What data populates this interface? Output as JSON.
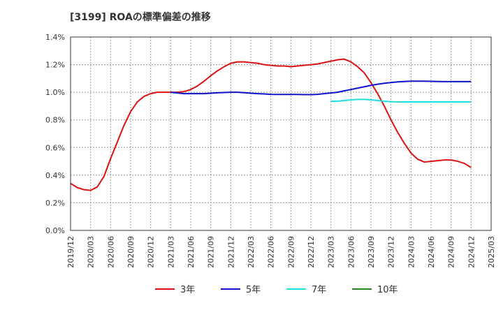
{
  "chart_data": {
    "type": "line",
    "title": "[3199]  ROAの標準偏差の推移",
    "xlabel": "",
    "ylabel": "",
    "ylim": [
      0,
      1.4
    ],
    "yticks": [
      0,
      0.2,
      0.4,
      0.6,
      0.8,
      1.0,
      1.2,
      1.4
    ],
    "ytick_labels": [
      "0.0%",
      "0.2%",
      "0.4%",
      "0.6%",
      "0.8%",
      "1.0%",
      "1.2%",
      "1.4%"
    ],
    "x_tick_labels": [
      "2019/12",
      "2020/03",
      "2020/06",
      "2020/09",
      "2020/12",
      "2021/03",
      "2021/06",
      "2021/09",
      "2021/12",
      "2022/03",
      "2022/06",
      "2022/09",
      "2022/12",
      "2023/03",
      "2023/06",
      "2023/09",
      "2023/12",
      "2024/03",
      "2024/06",
      "2024/09",
      "2024/12",
      "2025/03"
    ],
    "grid": true,
    "legend_position": "bottom",
    "series": [
      {
        "name": "3年",
        "color": "#dd1111",
        "points": [
          [
            "2019/12",
            0.34
          ],
          [
            "2020/01",
            0.31
          ],
          [
            "2020/02",
            0.295
          ],
          [
            "2020/03",
            0.29
          ],
          [
            "2020/04",
            0.315
          ],
          [
            "2020/05",
            0.39
          ],
          [
            "2020/06",
            0.52
          ],
          [
            "2020/07",
            0.64
          ],
          [
            "2020/08",
            0.76
          ],
          [
            "2020/09",
            0.86
          ],
          [
            "2020/10",
            0.93
          ],
          [
            "2020/11",
            0.97
          ],
          [
            "2020/12",
            0.99
          ],
          [
            "2021/01",
            1.0
          ],
          [
            "2021/02",
            1.0
          ],
          [
            "2021/03",
            1.0
          ],
          [
            "2021/04",
            1.0
          ],
          [
            "2021/05",
            1.005
          ],
          [
            "2021/06",
            1.02
          ],
          [
            "2021/07",
            1.045
          ],
          [
            "2021/08",
            1.08
          ],
          [
            "2021/09",
            1.12
          ],
          [
            "2021/10",
            1.155
          ],
          [
            "2021/11",
            1.185
          ],
          [
            "2021/12",
            1.21
          ],
          [
            "2022/01",
            1.22
          ],
          [
            "2022/02",
            1.22
          ],
          [
            "2022/03",
            1.215
          ],
          [
            "2022/04",
            1.21
          ],
          [
            "2022/05",
            1.2
          ],
          [
            "2022/06",
            1.195
          ],
          [
            "2022/07",
            1.19
          ],
          [
            "2022/08",
            1.19
          ],
          [
            "2022/09",
            1.185
          ],
          [
            "2022/10",
            1.19
          ],
          [
            "2022/11",
            1.195
          ],
          [
            "2022/12",
            1.2
          ],
          [
            "2023/01",
            1.205
          ],
          [
            "2023/02",
            1.215
          ],
          [
            "2023/03",
            1.225
          ],
          [
            "2023/04",
            1.235
          ],
          [
            "2023/05",
            1.24
          ],
          [
            "2023/06",
            1.22
          ],
          [
            "2023/07",
            1.185
          ],
          [
            "2023/08",
            1.14
          ],
          [
            "2023/09",
            1.07
          ],
          [
            "2023/10",
            0.99
          ],
          [
            "2023/11",
            0.9
          ],
          [
            "2023/12",
            0.8
          ],
          [
            "2024/01",
            0.71
          ],
          [
            "2024/02",
            0.63
          ],
          [
            "2024/03",
            0.56
          ],
          [
            "2024/04",
            0.515
          ],
          [
            "2024/05",
            0.495
          ],
          [
            "2024/06",
            0.5
          ],
          [
            "2024/07",
            0.505
          ],
          [
            "2024/08",
            0.51
          ],
          [
            "2024/09",
            0.51
          ],
          [
            "2024/10",
            0.5
          ],
          [
            "2024/11",
            0.485
          ],
          [
            "2024/12",
            0.455
          ]
        ]
      },
      {
        "name": "5年",
        "color": "#1111cc",
        "points": [
          [
            "2021/03",
            1.0
          ],
          [
            "2021/04",
            0.995
          ],
          [
            "2021/05",
            0.99
          ],
          [
            "2021/06",
            0.99
          ],
          [
            "2021/07",
            0.99
          ],
          [
            "2021/08",
            0.99
          ],
          [
            "2021/09",
            0.993
          ],
          [
            "2021/10",
            0.996
          ],
          [
            "2021/11",
            0.998
          ],
          [
            "2021/12",
            1.0
          ],
          [
            "2022/01",
            1.0
          ],
          [
            "2022/02",
            0.997
          ],
          [
            "2022/03",
            0.993
          ],
          [
            "2022/04",
            0.99
          ],
          [
            "2022/05",
            0.988
          ],
          [
            "2022/06",
            0.985
          ],
          [
            "2022/07",
            0.984
          ],
          [
            "2022/08",
            0.984
          ],
          [
            "2022/09",
            0.984
          ],
          [
            "2022/10",
            0.984
          ],
          [
            "2022/11",
            0.983
          ],
          [
            "2022/12",
            0.983
          ],
          [
            "2023/01",
            0.985
          ],
          [
            "2023/02",
            0.99
          ],
          [
            "2023/03",
            0.995
          ],
          [
            "2023/04",
            1.0
          ],
          [
            "2023/05",
            1.01
          ],
          [
            "2023/06",
            1.02
          ],
          [
            "2023/07",
            1.03
          ],
          [
            "2023/08",
            1.04
          ],
          [
            "2023/09",
            1.05
          ],
          [
            "2023/10",
            1.058
          ],
          [
            "2023/11",
            1.065
          ],
          [
            "2023/12",
            1.07
          ],
          [
            "2024/01",
            1.075
          ],
          [
            "2024/02",
            1.078
          ],
          [
            "2024/03",
            1.08
          ],
          [
            "2024/04",
            1.08
          ],
          [
            "2024/05",
            1.08
          ],
          [
            "2024/06",
            1.079
          ],
          [
            "2024/07",
            1.078
          ],
          [
            "2024/08",
            1.077
          ],
          [
            "2024/09",
            1.077
          ],
          [
            "2024/10",
            1.077
          ],
          [
            "2024/11",
            1.077
          ],
          [
            "2024/12",
            1.077
          ]
        ]
      },
      {
        "name": "7年",
        "color": "#22dddd",
        "points": [
          [
            "2023/03",
            0.935
          ],
          [
            "2023/04",
            0.935
          ],
          [
            "2023/05",
            0.94
          ],
          [
            "2023/06",
            0.945
          ],
          [
            "2023/07",
            0.948
          ],
          [
            "2023/08",
            0.948
          ],
          [
            "2023/09",
            0.945
          ],
          [
            "2023/10",
            0.94
          ],
          [
            "2023/11",
            0.935
          ],
          [
            "2023/12",
            0.932
          ],
          [
            "2024/01",
            0.93
          ],
          [
            "2024/02",
            0.93
          ],
          [
            "2024/03",
            0.93
          ],
          [
            "2024/04",
            0.93
          ],
          [
            "2024/05",
            0.93
          ],
          [
            "2024/06",
            0.93
          ],
          [
            "2024/07",
            0.93
          ],
          [
            "2024/08",
            0.93
          ],
          [
            "2024/09",
            0.93
          ],
          [
            "2024/10",
            0.93
          ],
          [
            "2024/11",
            0.93
          ],
          [
            "2024/12",
            0.93
          ]
        ]
      },
      {
        "name": "10年",
        "color": "#228822",
        "points": []
      }
    ]
  }
}
